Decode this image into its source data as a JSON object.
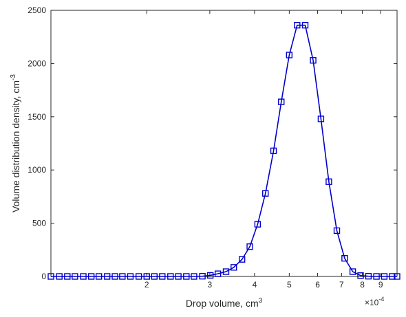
{
  "chart_data": {
    "type": "line",
    "xlabel": "Drop volume, cm",
    "xlabel_sup": "3",
    "ylabel": "Volume distribution density, cm",
    "ylabel_sup": "-3",
    "x_scale": "log",
    "x_multiplier": "×10",
    "x_multiplier_exp": "-4",
    "xlim": [
      1.08,
      10.0
    ],
    "ylim": [
      0,
      2500
    ],
    "y_ticks": [
      0,
      500,
      1000,
      1500,
      2000,
      2500
    ],
    "x_ticks": [
      {
        "value": 2,
        "label": "2"
      },
      {
        "value": 3,
        "label": "3"
      },
      {
        "value": 4,
        "label": "4"
      },
      {
        "value": 5,
        "label": "5"
      },
      {
        "value": 6,
        "label": "6"
      },
      {
        "value": 7,
        "label": "7"
      },
      {
        "value": 8,
        "label": "8"
      },
      {
        "value": 9,
        "label": "9"
      }
    ],
    "grid": false,
    "marker": "square",
    "color": "#0000cc",
    "series": [
      {
        "x": [
          1.08,
          1.14,
          1.2,
          1.26,
          1.33,
          1.4,
          1.47,
          1.55,
          1.63,
          1.71,
          1.8,
          1.9,
          2.0,
          2.1,
          2.21,
          2.33,
          2.45,
          2.58,
          2.71,
          2.86,
          3.01,
          3.16,
          3.33,
          3.5,
          3.69,
          3.88,
          4.08,
          4.29,
          4.52,
          4.75,
          5.0,
          5.26,
          5.54,
          5.83,
          6.13,
          6.45,
          6.79,
          7.14,
          7.52,
          7.91,
          8.32,
          8.76,
          9.21,
          9.69,
          10.0
        ],
        "values": [
          0,
          0,
          0,
          0,
          0,
          0,
          0,
          0,
          0,
          0,
          0,
          0,
          0,
          0,
          0,
          0,
          0,
          0,
          0,
          2,
          10,
          25,
          45,
          85,
          160,
          280,
          490,
          780,
          1180,
          1640,
          2080,
          2360,
          2360,
          2030,
          1480,
          890,
          430,
          170,
          45,
          8,
          2,
          0,
          0,
          0,
          0
        ]
      }
    ]
  }
}
